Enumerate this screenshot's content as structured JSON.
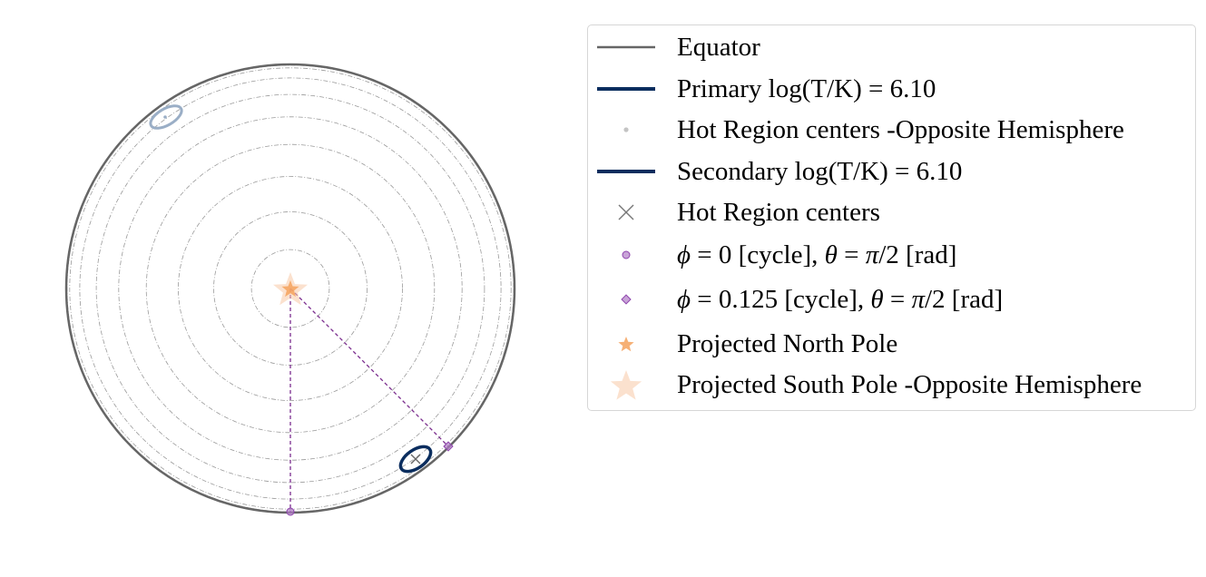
{
  "chart_data": {
    "type": "scatter",
    "title": "",
    "description_free": true,
    "equator_color": "#666666",
    "grid_rings_deg": [
      10,
      20,
      30,
      40,
      50,
      60,
      70,
      80,
      85
    ],
    "primary_color": "#0a2d5e",
    "secondary_color": "#0a2d5e",
    "opposite_color": "#9aaec6",
    "marker_color": "#9b59b6",
    "pole_color": "#f5a25d",
    "series": [
      {
        "name": "Equator",
        "kind": "line"
      },
      {
        "name": "Primary log(T/K) = 6.10",
        "kind": "line"
      },
      {
        "name": "Hot Region centers -Opposite Hemisphere",
        "kind": "dot"
      },
      {
        "name": "Secondary log(T/K) = 6.10",
        "kind": "line"
      },
      {
        "name": "Hot Region centers",
        "kind": "x"
      },
      {
        "name": "phi0",
        "kind": "circle"
      },
      {
        "name": "phi0125",
        "kind": "diamond"
      },
      {
        "name": "Projected North Pole",
        "kind": "star-small"
      },
      {
        "name": "Projected South Pole  -Opposite Hemisphere",
        "kind": "star-large"
      }
    ],
    "points": {
      "phi0": {
        "phase_cycle": 0,
        "theta_rad": "π/2"
      },
      "phi0125": {
        "phase_cycle": 0.125,
        "theta_rad": "π/2"
      }
    }
  },
  "legend": {
    "items": [
      {
        "label": "Equator"
      },
      {
        "label": "Primary log(T/K) = 6.10"
      },
      {
        "label": "Hot Region centers -Opposite Hemisphere"
      },
      {
        "label": "Secondary log(T/K) = 6.10"
      },
      {
        "label": "Hot Region centers"
      },
      {
        "label_phi": "ϕ",
        "label_eq1": " = 0 [cycle], ",
        "label_theta": "θ",
        "label_eq2": " = ",
        "label_pi": "π",
        "label_rest": "/2 [rad]"
      },
      {
        "label_phi": "ϕ",
        "label_eq1": " = 0.125 [cycle], ",
        "label_theta": "θ",
        "label_eq2": " = ",
        "label_pi": "π",
        "label_rest": "/2 [rad]"
      },
      {
        "label": "Projected North Pole"
      },
      {
        "label": "Projected South Pole  -Opposite Hemisphere"
      }
    ]
  }
}
